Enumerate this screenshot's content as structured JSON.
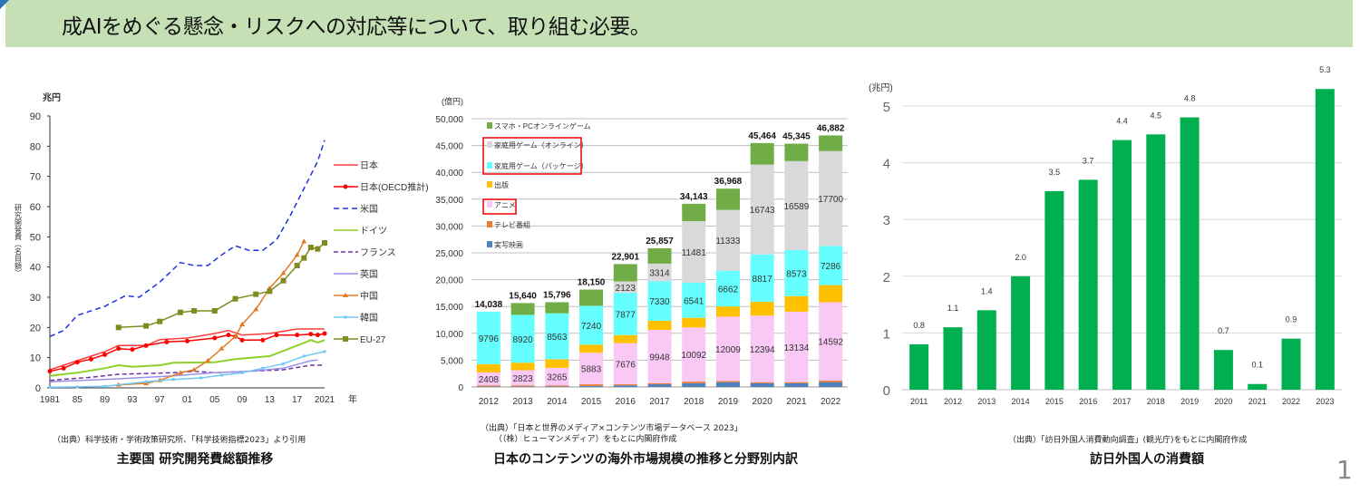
{
  "banner": {
    "text": "成AIをめぐる懸念・リスクへの対応等について、取り組む必要。",
    "background": "#c5e0b4"
  },
  "page_number": "1",
  "captions": [
    {
      "source": "（出典）科学技術・学術政策研究所、「科学技術指標2023」より引用",
      "title": "主要国  研究開発費総額推移"
    },
    {
      "source": "（出典）「日本と世界のメディア×コンテンツ市場データベース 2023」",
      "source2": "（（株）ヒューマンメディア）をもとに内閣府作成",
      "title": "日本のコンテンツの海外市場規模の推移と分野別内訳"
    },
    {
      "source": "（出典）「訪日外国人消費動向調査」(観光庁)をもとに内閣府作成",
      "title": "訪日外国人の消費額"
    }
  ],
  "chart_data": [
    {
      "type": "line",
      "unit_label": "兆円",
      "ylabel": "研究開発費（名目額）",
      "xlabel": "年",
      "ylim": [
        0,
        90
      ],
      "yticks": [
        "0",
        "10",
        "20",
        "30",
        "40",
        "50",
        "60",
        "70",
        "80",
        "90"
      ],
      "xlim": [
        1981,
        2021
      ],
      "xticks": [
        {
          "v": 1981,
          "label": "1981"
        },
        {
          "v": 1985,
          "label": "85"
        },
        {
          "v": 1989,
          "label": "89"
        },
        {
          "v": 1993,
          "label": "93"
        },
        {
          "v": 1997,
          "label": "97"
        },
        {
          "v": 2001,
          "label": "01"
        },
        {
          "v": 2005,
          "label": "05"
        },
        {
          "v": 2009,
          "label": "09"
        },
        {
          "v": 2013,
          "label": "13"
        },
        {
          "v": 2017,
          "label": "17"
        },
        {
          "v": 2021,
          "label": "2021"
        }
      ],
      "legend": "right",
      "series": [
        {
          "name": "日本",
          "color": "#ff3b3b",
          "dash": "",
          "marker": "",
          "points": [
            [
              1981,
              6
            ],
            [
              1985,
              9
            ],
            [
              1989,
              12
            ],
            [
              1991,
              14
            ],
            [
              1995,
              14
            ],
            [
              1997,
              16
            ],
            [
              2001,
              16.5
            ],
            [
              2005,
              18
            ],
            [
              2007,
              19
            ],
            [
              2009,
              17.5
            ],
            [
              2013,
              18
            ],
            [
              2017,
              19.5
            ],
            [
              2021,
              19.5
            ]
          ]
        },
        {
          "name": "日本(OECD推計)",
          "color": "#ff0000",
          "dash": "",
          "marker": "circle",
          "points": [
            [
              1981,
              5.5
            ],
            [
              1983,
              6.5
            ],
            [
              1985,
              8.5
            ],
            [
              1987,
              9.5
            ],
            [
              1989,
              11
            ],
            [
              1991,
              13
            ],
            [
              1993,
              12.7
            ],
            [
              1995,
              14
            ],
            [
              1998,
              15.2
            ],
            [
              2001,
              15.5
            ],
            [
              2005,
              16.5
            ],
            [
              2007,
              17.5
            ],
            [
              2008,
              17
            ],
            [
              2009,
              15.8
            ],
            [
              2012,
              15.8
            ],
            [
              2014,
              17.5
            ],
            [
              2017,
              17.5
            ],
            [
              2019,
              17.8
            ],
            [
              2020,
              17.5
            ],
            [
              2021,
              18
            ]
          ]
        },
        {
          "name": "米国",
          "color": "#1f2fe0",
          "dash": "6,4",
          "marker": "",
          "points": [
            [
              1981,
              17
            ],
            [
              1983,
              19
            ],
            [
              1985,
              24
            ],
            [
              1989,
              27
            ],
            [
              1992,
              30.5
            ],
            [
              1994,
              30
            ],
            [
              1997,
              35
            ],
            [
              2000,
              41.5
            ],
            [
              2002,
              40.5
            ],
            [
              2004,
              40.5
            ],
            [
              2006,
              44
            ],
            [
              2008,
              47
            ],
            [
              2010,
              45.5
            ],
            [
              2012,
              45.5
            ],
            [
              2014,
              49
            ],
            [
              2016,
              57
            ],
            [
              2018,
              66
            ],
            [
              2020,
              75
            ],
            [
              2021,
              82
            ]
          ]
        },
        {
          "name": "ドイツ",
          "color": "#8fd12a",
          "dash": "",
          "marker": "",
          "points": [
            [
              1981,
              4
            ],
            [
              1985,
              5
            ],
            [
              1989,
              6.5
            ],
            [
              1991,
              7.5
            ],
            [
              1993,
              7
            ],
            [
              1997,
              7.5
            ],
            [
              1999,
              8.3
            ],
            [
              2005,
              8.5
            ],
            [
              2008,
              9.5
            ],
            [
              2013,
              10.5
            ],
            [
              2017,
              14
            ],
            [
              2019,
              15.8
            ],
            [
              2020,
              15
            ],
            [
              2021,
              15.8
            ]
          ]
        },
        {
          "name": "フランス",
          "color": "#7030a0",
          "dash": "5,3",
          "marker": "",
          "points": [
            [
              1981,
              2.5
            ],
            [
              1987,
              3.5
            ],
            [
              1991,
              4.5
            ],
            [
              1999,
              5
            ],
            [
              2002,
              5.5
            ],
            [
              2005,
              5
            ],
            [
              2010,
              5.5
            ],
            [
              2015,
              6
            ],
            [
              2019,
              7.5
            ],
            [
              2021,
              7.5
            ]
          ]
        },
        {
          "name": "英国",
          "color": "#9b8fe8",
          "dash": "",
          "marker": "",
          "points": [
            [
              1981,
              2
            ],
            [
              1991,
              3
            ],
            [
              1999,
              4
            ],
            [
              2005,
              5
            ],
            [
              2010,
              5.5
            ],
            [
              2015,
              6.5
            ],
            [
              2019,
              9
            ],
            [
              2020,
              9.2
            ]
          ]
        },
        {
          "name": "中国",
          "color": "#e07b28",
          "dash": "",
          "marker": "triangle",
          "points": [
            [
              1991,
              1
            ],
            [
              1995,
              1.5
            ],
            [
              1997,
              2.5
            ],
            [
              2000,
              5
            ],
            [
              2002,
              6
            ],
            [
              2004,
              9
            ],
            [
              2006,
              13
            ],
            [
              2008,
              17
            ],
            [
              2009,
              21
            ],
            [
              2011,
              26
            ],
            [
              2013,
              33
            ],
            [
              2015,
              38
            ],
            [
              2017,
              44
            ],
            [
              2018,
              48.5
            ]
          ]
        },
        {
          "name": "韓国",
          "color": "#6fc8f5",
          "dash": "",
          "marker": "x",
          "points": [
            [
              1981,
              0.2
            ],
            [
              1985,
              0.3
            ],
            [
              1989,
              0.5
            ],
            [
              1995,
              2
            ],
            [
              1999,
              2.8
            ],
            [
              2003,
              3.3
            ],
            [
              2006,
              4.2
            ],
            [
              2009,
              5
            ],
            [
              2012,
              6.5
            ],
            [
              2015,
              8
            ],
            [
              2018,
              10.5
            ],
            [
              2021,
              12
            ]
          ]
        },
        {
          "name": "EU-27",
          "color": "#7f8a1f",
          "dash": "",
          "marker": "square",
          "points": [
            [
              1991,
              20
            ],
            [
              1995,
              20.5
            ],
            [
              1997,
              22
            ],
            [
              2000,
              25
            ],
            [
              2002,
              25.5
            ],
            [
              2005,
              25.5
            ],
            [
              2008,
              29.5
            ],
            [
              2011,
              31
            ],
            [
              2013,
              32
            ],
            [
              2015,
              35.5
            ],
            [
              2017,
              40.5
            ],
            [
              2018,
              43
            ],
            [
              2019,
              46.5
            ],
            [
              2020,
              46
            ],
            [
              2021,
              48
            ]
          ]
        }
      ]
    },
    {
      "type": "bar",
      "stacked": true,
      "unit_label": "(億円)",
      "ylim": [
        0,
        50000
      ],
      "yticks": [
        "0",
        "5,000",
        "10,000",
        "15,000",
        "20,000",
        "25,000",
        "30,000",
        "35,000",
        "40,000",
        "45,000",
        "50,000"
      ],
      "categories": [
        "2012",
        "2013",
        "2014",
        "2015",
        "2016",
        "2017",
        "2018",
        "2019",
        "2020",
        "2021",
        "2022"
      ],
      "totals": [
        "14,038",
        "15,640",
        "15,796",
        "18,150",
        "22,901",
        "25,857",
        "34,143",
        "36,968",
        "45,464",
        "45,345",
        "46,882"
      ],
      "legend": "top-left",
      "highlighted_legend": [
        "家庭用ゲーム（オンライン）",
        "家庭用ゲーム（パッケージ）",
        "アニメ"
      ],
      "series": [
        {
          "name": "実写映画",
          "color": "#4f81bd",
          "values": [
            100,
            100,
            100,
            200,
            300,
            500,
            700,
            900,
            700,
            700,
            900
          ],
          "labels": []
        },
        {
          "name": "テレビ番組",
          "color": "#ed7d31",
          "values": [
            200,
            200,
            200,
            300,
            200,
            200,
            300,
            200,
            200,
            200,
            300
          ],
          "labels": []
        },
        {
          "name": "アニメ",
          "color": "#f9c8f5",
          "values": [
            2408,
            2823,
            3265,
            5883,
            7676,
            9948,
            10092,
            12009,
            12394,
            13134,
            14592
          ],
          "labels": [
            "2408",
            "2823",
            "3265",
            "5883",
            "7676",
            "9948",
            "10092",
            "12009",
            "12394",
            "13134",
            "14592"
          ]
        },
        {
          "name": "出版",
          "color": "#ffc000",
          "values": [
            1534,
            1400,
            1600,
            1500,
            1500,
            1700,
            1800,
            1900,
            2600,
            2900,
            3200
          ],
          "labels": []
        },
        {
          "name": "家庭用ゲーム（パッケージ）",
          "color": "#66ffff",
          "values": [
            9796,
            8920,
            8563,
            7240,
            7877,
            7330,
            6541,
            6662,
            8817,
            8573,
            7286
          ],
          "labels": [
            "9796",
            "8920",
            "8563",
            "7240",
            "7877",
            "7330",
            "6541",
            "6662",
            "8817",
            "8573",
            "7286"
          ]
        },
        {
          "name": "家庭用ゲーム（オンライン）",
          "color": "#d9d9d9",
          "values": [
            0,
            0,
            0,
            0,
            2123,
            3314,
            11481,
            11333,
            16743,
            16589,
            17700
          ],
          "labels": [
            "",
            "",
            "",
            "",
            "2123",
            "3314",
            "11481",
            "11333",
            "16743",
            "16589",
            "17700"
          ]
        },
        {
          "name": "スマホ・PCオンラインゲーム",
          "color": "#70ad47",
          "values": [
            0,
            2197,
            2068,
            3027,
            3225,
            2865,
            3229,
            3964,
            4010,
            3249,
            2904
          ],
          "labels": []
        }
      ]
    },
    {
      "type": "bar",
      "unit_label": "(兆円)",
      "ylim": [
        0,
        5
      ],
      "yticks": [
        "0",
        "1",
        "2",
        "3",
        "4",
        "5"
      ],
      "categories": [
        "2011",
        "2012",
        "2013",
        "2014",
        "2015",
        "2016",
        "2017",
        "2018",
        "2019",
        "2020",
        "2021",
        "2022",
        "2023"
      ],
      "values": [
        0.8,
        1.1,
        1.4,
        2.0,
        3.5,
        3.7,
        4.4,
        4.5,
        4.8,
        0.7,
        0.1,
        0.9,
        5.3
      ],
      "labels": [
        "0.8",
        "1.1",
        "1.4",
        "2.0",
        "3.5",
        "3.7",
        "4.4",
        "4.5",
        "4.8",
        "0.7",
        "0.1",
        "0.9",
        "5.3"
      ],
      "color": "#00b050",
      "grid": true
    }
  ]
}
